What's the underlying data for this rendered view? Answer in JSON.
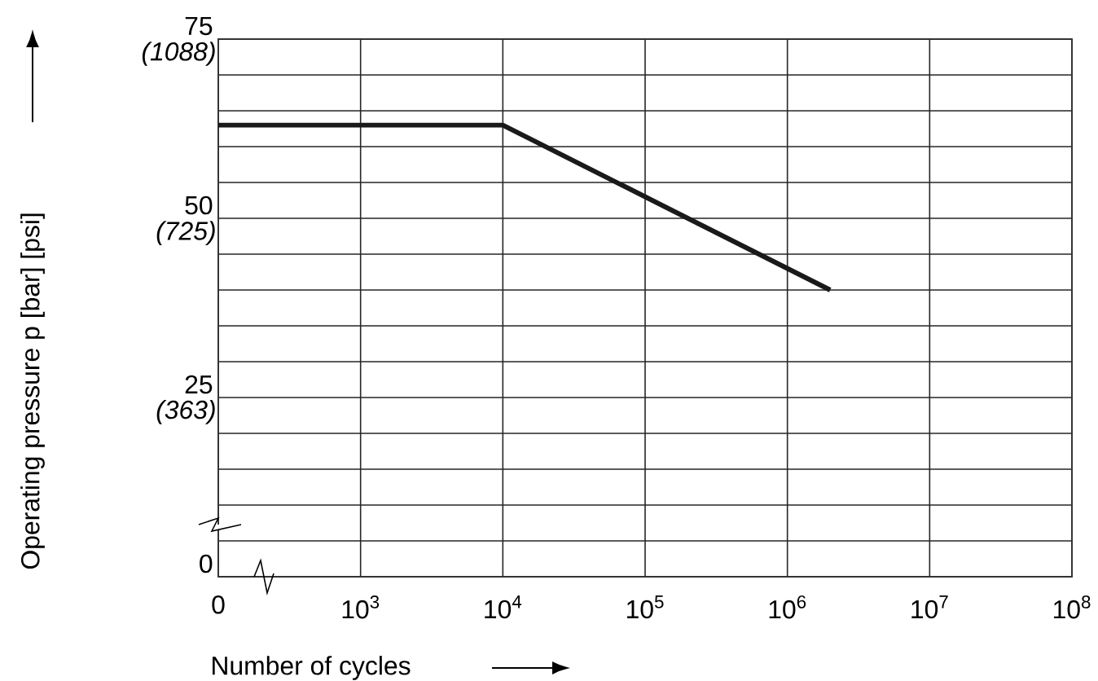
{
  "chart_data": {
    "type": "line",
    "xlabel": "Number of cycles",
    "ylabel": "Operating pressure p [bar] [psi]",
    "log": "x",
    "xlim": [
      0,
      100000000
    ],
    "xticks": [
      0,
      {
        "value": 1000,
        "label": "10$^{3}$"
      },
      {
        "value": 10000,
        "label": "10$^{4}$"
      },
      {
        "value": 100000,
        "label": "10$^{5}$"
      },
      {
        "value": 1000000,
        "label": "10$^{6}$"
      },
      {
        "value": 10000000,
        "label": "10$^{7}$"
      },
      {
        "value": 100000000,
        "label": "10$^{8}$"
      }
    ],
    "y2lim": [
      0,
      75
    ],
    "y2ticks": [
      0,
      25,
      50,
      75
    ],
    "ylim": [
      0,
      1088
    ],
    "yticks": [
      {
        "value": 363,
        "label": "(363)"
      },
      {
        "value": 725,
        "label": "(725)"
      },
      {
        "value": 1088,
        "label": "(1088)"
      }
    ],
    "grid": true,
    "series": [
      {
        "color": "#1a1a1a",
        "axis": "y2",
        "x": [
          100,
          10000,
          2000000
        ],
        "values": [
          63,
          63,
          40
        ]
      }
    ]
  }
}
